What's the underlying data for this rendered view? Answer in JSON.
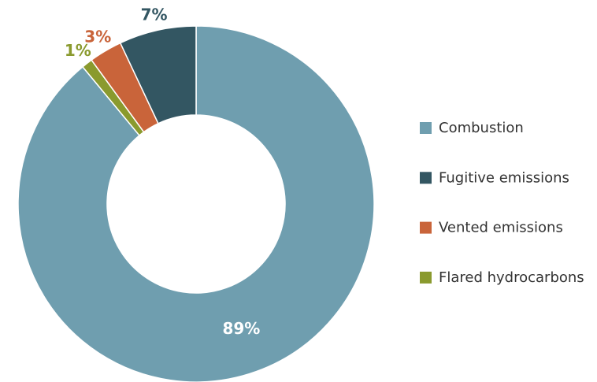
{
  "chart_data": {
    "type": "donut",
    "categories": [
      "Combustion",
      "Flared hydrocarbons",
      "Vented emissions",
      "Fugitive emissions"
    ],
    "values": [
      89,
      1,
      3,
      7
    ],
    "value_labels": [
      "89%",
      "1%",
      "3%",
      "7%"
    ],
    "colors": [
      "#6f9eaf",
      "#8a9a2e",
      "#c9643a",
      "#335662"
    ],
    "legend": {
      "position": "right",
      "order": [
        0,
        3,
        2,
        1
      ]
    }
  }
}
